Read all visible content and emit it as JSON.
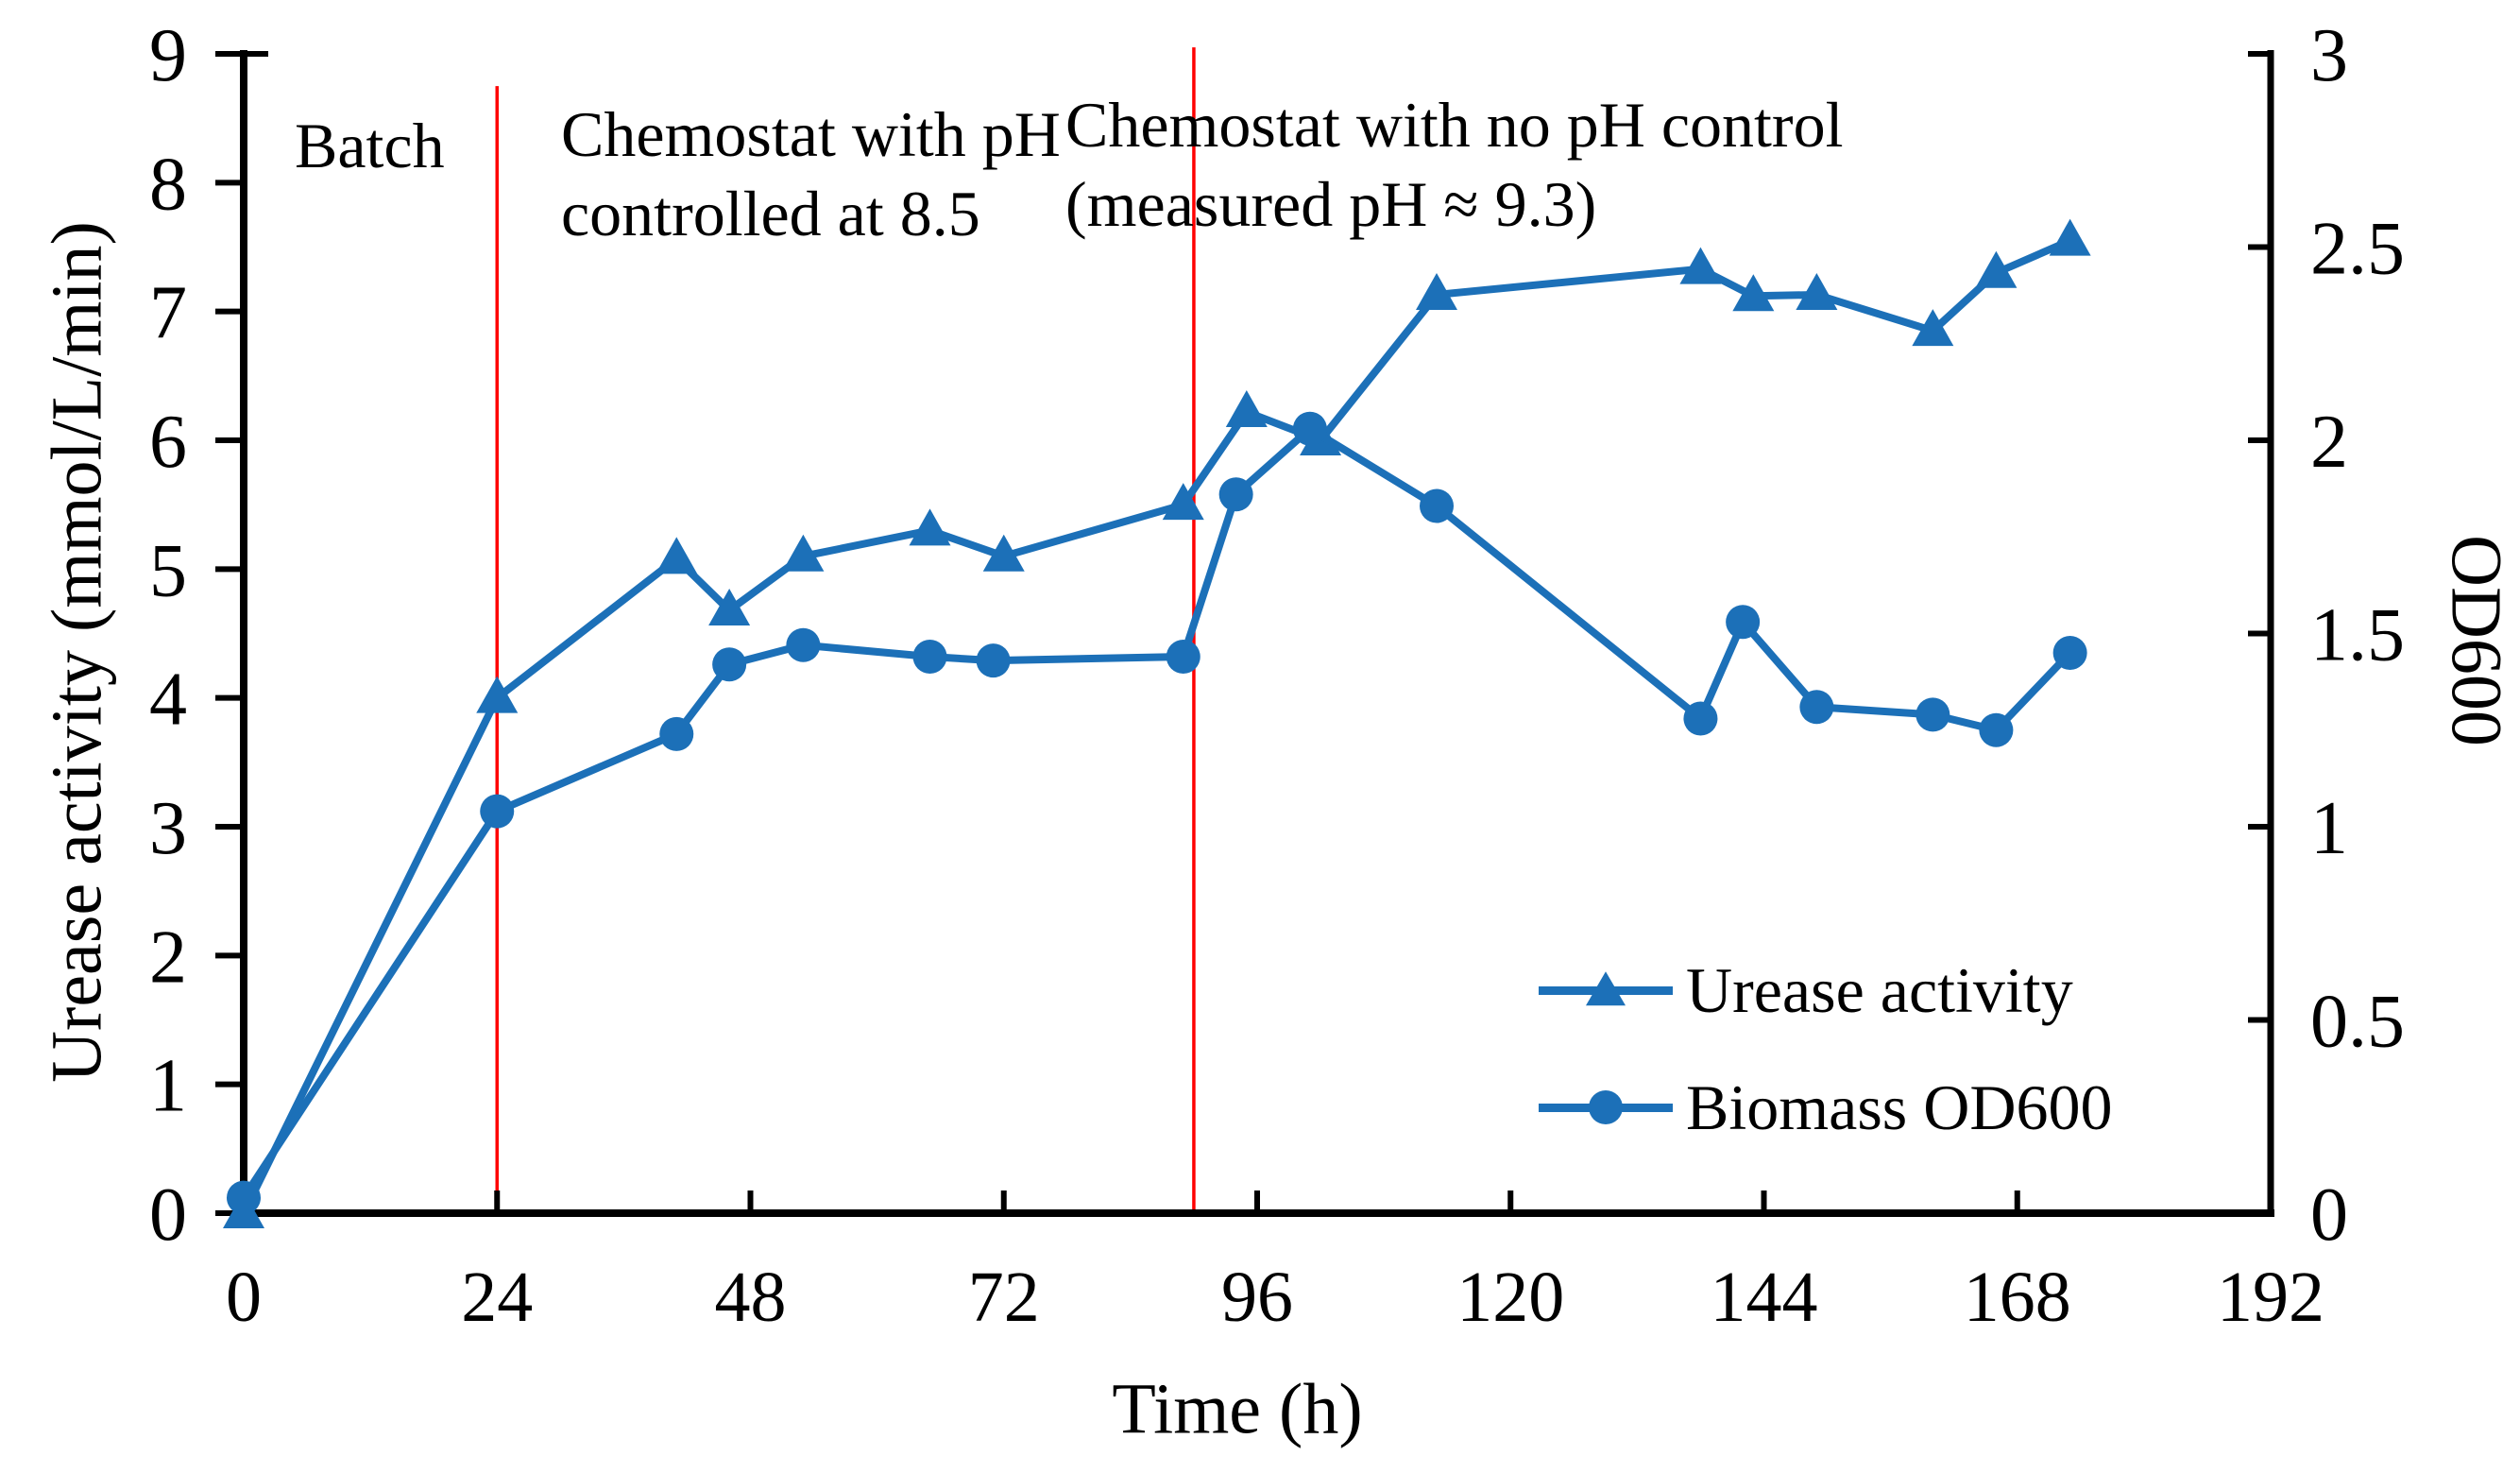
{
  "chart_data": {
    "type": "line",
    "title": "",
    "xlabel": "Time (h)",
    "ylabel_left": "Urease activity (mmol/L/min)",
    "ylabel_right": "OD600",
    "xlim": [
      0,
      192
    ],
    "xticks": [
      "0",
      "24",
      "48",
      "72",
      "96",
      "120",
      "144",
      "168",
      "192"
    ],
    "ylim_left": [
      0,
      9
    ],
    "yticks_left": [
      "0",
      "1",
      "2",
      "3",
      "4",
      "5",
      "6",
      "7",
      "8",
      "9"
    ],
    "ylim_right": [
      0,
      3
    ],
    "yticks_right": [
      "0",
      "0.5",
      "1",
      "1.5",
      "2",
      "2.5",
      "3"
    ],
    "grid": false,
    "legend_position": "lower right",
    "colors": {
      "series": "#1C70B8",
      "divider": "#FF0000",
      "axis": "#000000",
      "text": "#000000"
    },
    "phase_dividers": [
      {
        "x": 24,
        "top": 8.75
      },
      {
        "x": 90,
        "top": 9.05
      }
    ],
    "annotations": {
      "batch": {
        "text": "Batch"
      },
      "ph_controlled": {
        "line1": "Chemostat with pH",
        "line2": "controlled at 8.5"
      },
      "no_ph_control": {
        "line1": "Chemostat with no pH control",
        "line2": "(measured pH ≈ 9.3)"
      }
    },
    "series": [
      {
        "name": "Urease activity",
        "axis": "left",
        "marker": "triangle",
        "x": [
          0,
          24,
          41,
          46,
          53,
          65,
          72,
          89,
          95,
          102,
          113,
          138,
          143,
          149,
          160,
          166,
          173
        ],
        "y": [
          0.0,
          4.0,
          5.08,
          4.68,
          5.1,
          5.3,
          5.1,
          5.5,
          6.22,
          6.0,
          7.13,
          7.33,
          7.12,
          7.13,
          6.85,
          7.3,
          7.55
        ]
      },
      {
        "name": "Biomass OD600",
        "axis": "right",
        "marker": "circle",
        "x": [
          0,
          24,
          41,
          46,
          53,
          65,
          71,
          89,
          94,
          101,
          113,
          138,
          142,
          149,
          160,
          166,
          173
        ],
        "y": [
          0.04,
          1.04,
          1.24,
          1.42,
          1.47,
          1.44,
          1.43,
          1.44,
          1.86,
          2.03,
          1.83,
          1.28,
          1.53,
          1.31,
          1.29,
          1.25,
          1.45
        ]
      }
    ]
  }
}
